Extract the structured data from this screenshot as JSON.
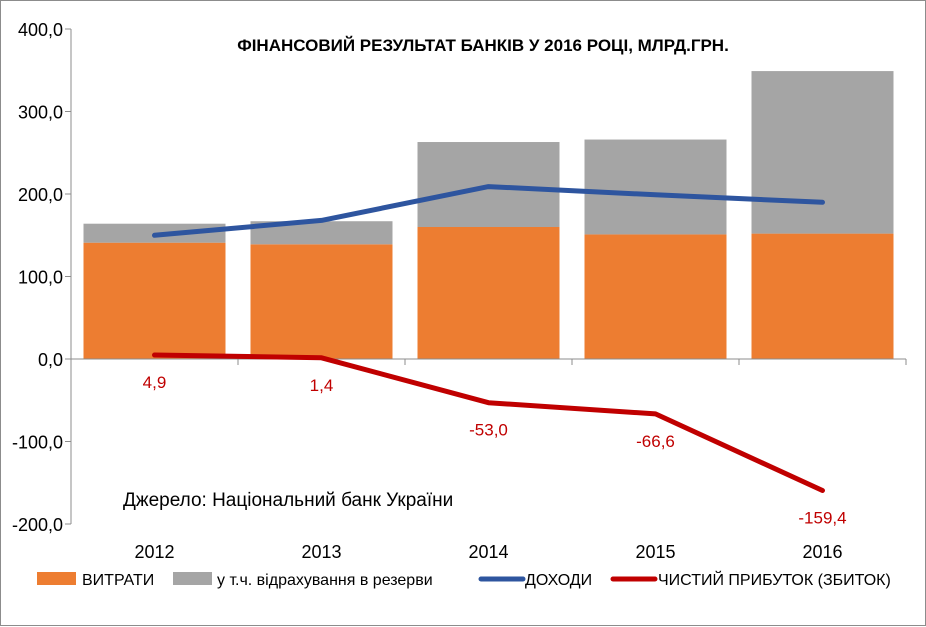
{
  "chart_data": {
    "type": "bar",
    "title": "ФІНАНСОВИЙ РЕЗУЛЬТАТ БАНКІВ У 2016 РОЦІ, МЛРД.ГРН.",
    "source_note": "Джерело: Національний банк України",
    "categories": [
      "2012",
      "2013",
      "2014",
      "2015",
      "2016"
    ],
    "ylim": [
      -200,
      400
    ],
    "yticks": [
      {
        "value": 400,
        "label": "400,0"
      },
      {
        "value": 300,
        "label": "300,0"
      },
      {
        "value": 200,
        "label": "200,0"
      },
      {
        "value": 100,
        "label": "100,0"
      },
      {
        "value": 0,
        "label": "0,0"
      },
      {
        "value": -100,
        "label": "-100,0"
      },
      {
        "value": -200,
        "label": "-200,0"
      }
    ],
    "grid": false,
    "legend_position": "bottom",
    "series": [
      {
        "name": "ВИТРАТИ",
        "kind": "bar",
        "color": "#ed7d31",
        "values": [
          141,
          139,
          160,
          151,
          152
        ]
      },
      {
        "name": "у т.ч. відрахування в резерви",
        "kind": "bar-stacked",
        "color": "#a5a5a5",
        "values": [
          23,
          28,
          103,
          115,
          197
        ]
      },
      {
        "name": "ДОХОДИ",
        "kind": "line",
        "color": "#2e559f",
        "values": [
          150,
          168,
          209,
          199,
          190
        ]
      },
      {
        "name": "ЧИСТИЙ ПРИБУТОК (ЗБИТОК)",
        "kind": "line",
        "color": "#c00000",
        "values": [
          4.9,
          1.4,
          -53.0,
          -66.6,
          -159.4
        ],
        "labels": [
          "4,9",
          "1,4",
          "-53,0",
          "-66,6",
          "-159,4"
        ]
      }
    ]
  }
}
